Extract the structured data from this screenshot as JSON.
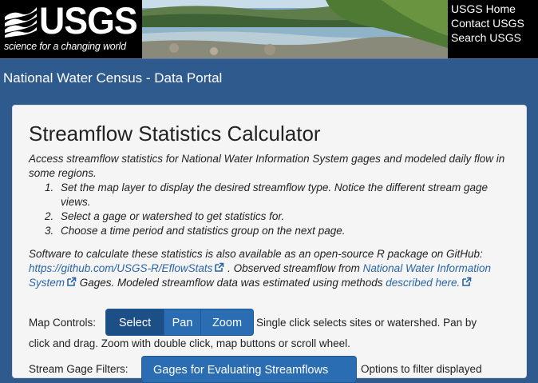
{
  "header": {
    "logo_text": "USGS",
    "logo_tagline": "science for a changing world",
    "links": [
      "USGS Home",
      "Contact USGS",
      "Search USGS"
    ]
  },
  "titlebar": {
    "title": "National Water Census - Data Portal"
  },
  "panel": {
    "title": "Streamflow Statistics Calculator",
    "intro": "Access streamflow statistics for National Water Information System gages and modeled daily flow in some regions.",
    "steps": [
      {
        "num": "1.",
        "text": "Set the map layer to display the desired streamflow type. Notice the different stream gage views."
      },
      {
        "num": "2.",
        "text": "Select a gage or watershed to get statistics for."
      },
      {
        "num": "3.",
        "text": "Choose a time period and statistics group on the next page."
      }
    ],
    "software": {
      "part1": "Software to calculate these statistics is also available as an open-source R package on GitHub: ",
      "link1": "https://github.com/USGS-R/EflowStats",
      "part2": " . Observed streamflow from ",
      "link2": "National Water Information System",
      "part3": " Gages. Modeled streamflow data was estimated using methods ",
      "link3": "described here."
    },
    "map_controls": {
      "label": "Map Controls:",
      "buttons": [
        "Select",
        "Pan",
        "Zoom"
      ],
      "active": "Select",
      "help_line1": "Single click selects sites or watershed. Pan by",
      "help_line2": "click and drag. Zoom with double click, map buttons or scroll wheel."
    },
    "filter": {
      "label": "Stream Gage Filters:",
      "selected": "Gages for Evaluating Streamflows",
      "help": "Options to filter displayed"
    }
  },
  "colors": {
    "header_bg": "#000000",
    "page_bg": "#2f5a8e",
    "button": "#2a6db3",
    "link": "#2a64a8"
  }
}
